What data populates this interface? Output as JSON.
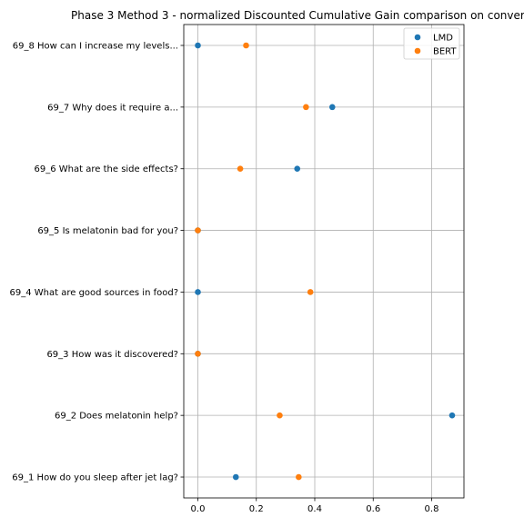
{
  "chart_data": {
    "type": "scatter",
    "title": "Phase 3 Method 3 - normalized Discounted Cumulative Gain comparison on conver",
    "xlabel": "",
    "ylabel": "",
    "xlim": [
      -0.04,
      0.91
    ],
    "x_ticks": [
      0.0,
      0.2,
      0.4,
      0.6,
      0.8
    ],
    "x_tick_labels": [
      "0.0",
      "0.2",
      "0.4",
      "0.6",
      "0.8"
    ],
    "grid": true,
    "legend_position": "top-right",
    "categories": [
      "69_8 How can I increase my levels...",
      "69_7 Why does it require a...",
      "69_6 What are the side effects?",
      "69_5 Is melatonin bad for you?",
      "69_4 What are good sources in food?",
      "69_3 How was it discovered?",
      "69_2 Does melatonin help?",
      "69_1 How do you sleep after jet lag?"
    ],
    "series": [
      {
        "name": "LMD",
        "color": "#1f77b4",
        "values": [
          0.0,
          0.46,
          0.34,
          0.0,
          0.0,
          0.0,
          0.87,
          0.13
        ]
      },
      {
        "name": "BERT",
        "color": "#ff7f0e",
        "values": [
          0.165,
          0.37,
          0.145,
          0.0,
          0.385,
          0.0,
          0.28,
          0.345
        ]
      }
    ]
  }
}
